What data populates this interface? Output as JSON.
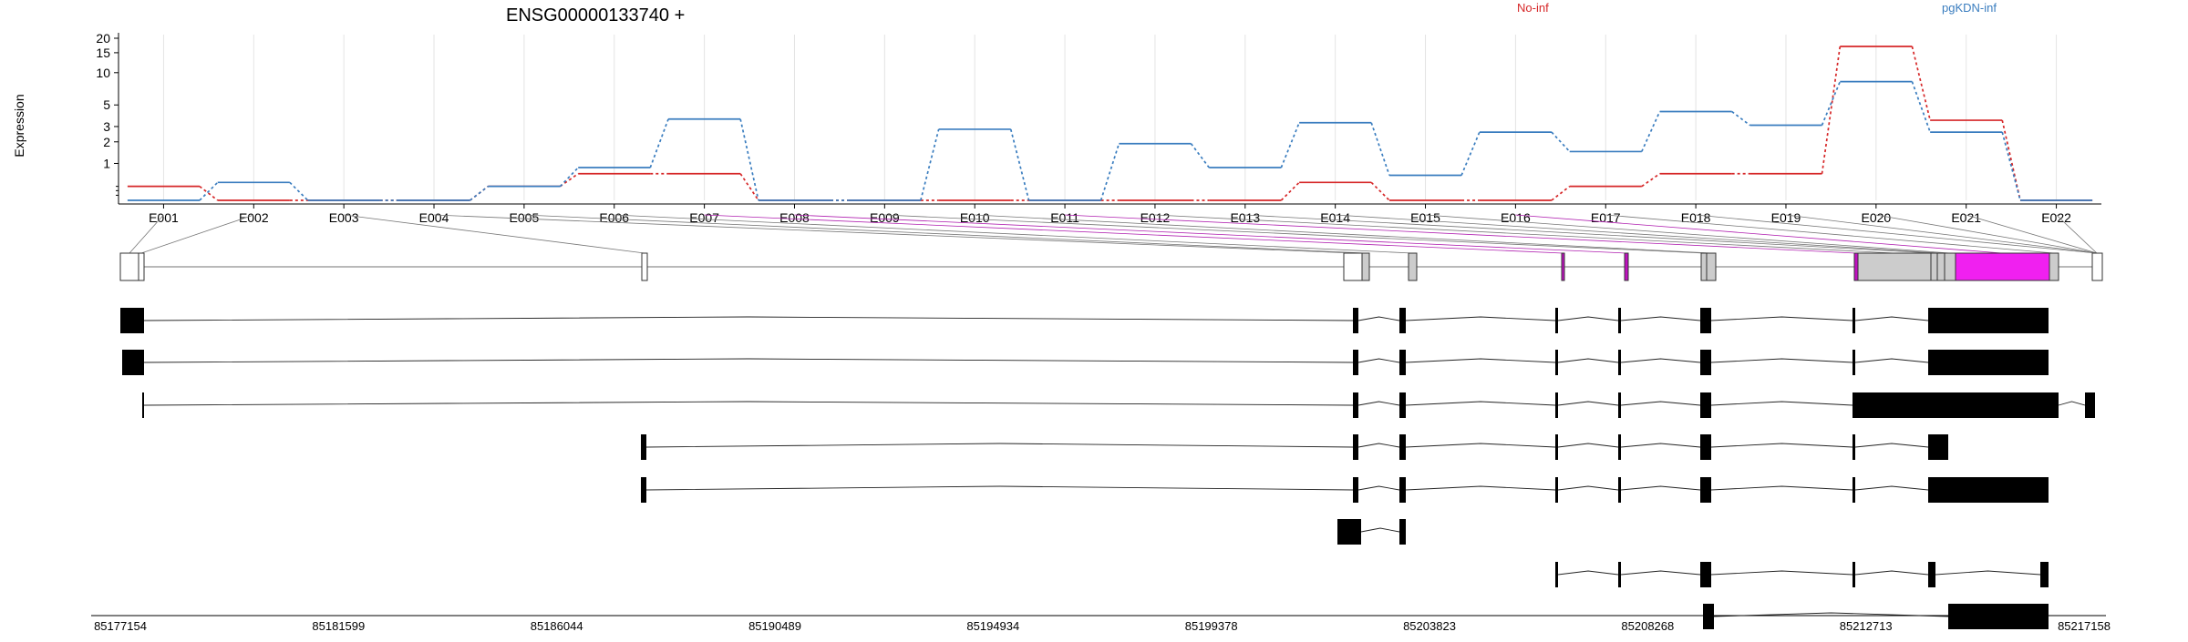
{
  "title": "ENSG00000133740 +",
  "ylabel": "Expression",
  "legend": [
    {
      "name": "No-inf",
      "color": "#d62728"
    },
    {
      "name": "pgKDN-inf",
      "color": "#3a7dbf"
    }
  ],
  "chart_data": {
    "type": "line",
    "title": "ENSG00000133740 +",
    "ylabel": "Expression",
    "xlabel": "",
    "yscale": "log",
    "yticks": [
      "1",
      "2",
      "3",
      "5",
      "10",
      "15",
      "20"
    ],
    "grid": true,
    "legend_position": "top",
    "categories": [
      "E001",
      "E002",
      "E003",
      "E004",
      "E005",
      "E006",
      "E007",
      "E008",
      "E009",
      "E010",
      "E011",
      "E012",
      "E013",
      "E014",
      "E015",
      "E016",
      "E017",
      "E018",
      "E019",
      "E020",
      "E021",
      "E022"
    ],
    "series": [
      {
        "name": "No-inf",
        "color": "#d62728",
        "values": [
          0.3,
          0,
          0,
          0,
          0.3,
          0.65,
          0.65,
          0,
          0,
          0,
          0,
          0,
          0,
          0.4,
          0,
          0,
          0.3,
          0.65,
          0.65,
          17,
          3.5,
          0
        ]
      },
      {
        "name": "pgKDN-inf",
        "color": "#3a7dbf",
        "values": [
          0,
          0.4,
          0,
          0,
          0.3,
          0.85,
          3.6,
          0,
          0,
          2.8,
          0,
          1.9,
          0.85,
          3.3,
          0.6,
          2.6,
          1.5,
          4.3,
          3.1,
          8.3,
          2.6,
          0
        ]
      }
    ]
  },
  "genomic_axis": {
    "ticks": [
      "85177154",
      "85181599",
      "85186044",
      "85190489",
      "85194934",
      "85199378",
      "85203823",
      "85208268",
      "85212713",
      "85217158"
    ]
  }
}
